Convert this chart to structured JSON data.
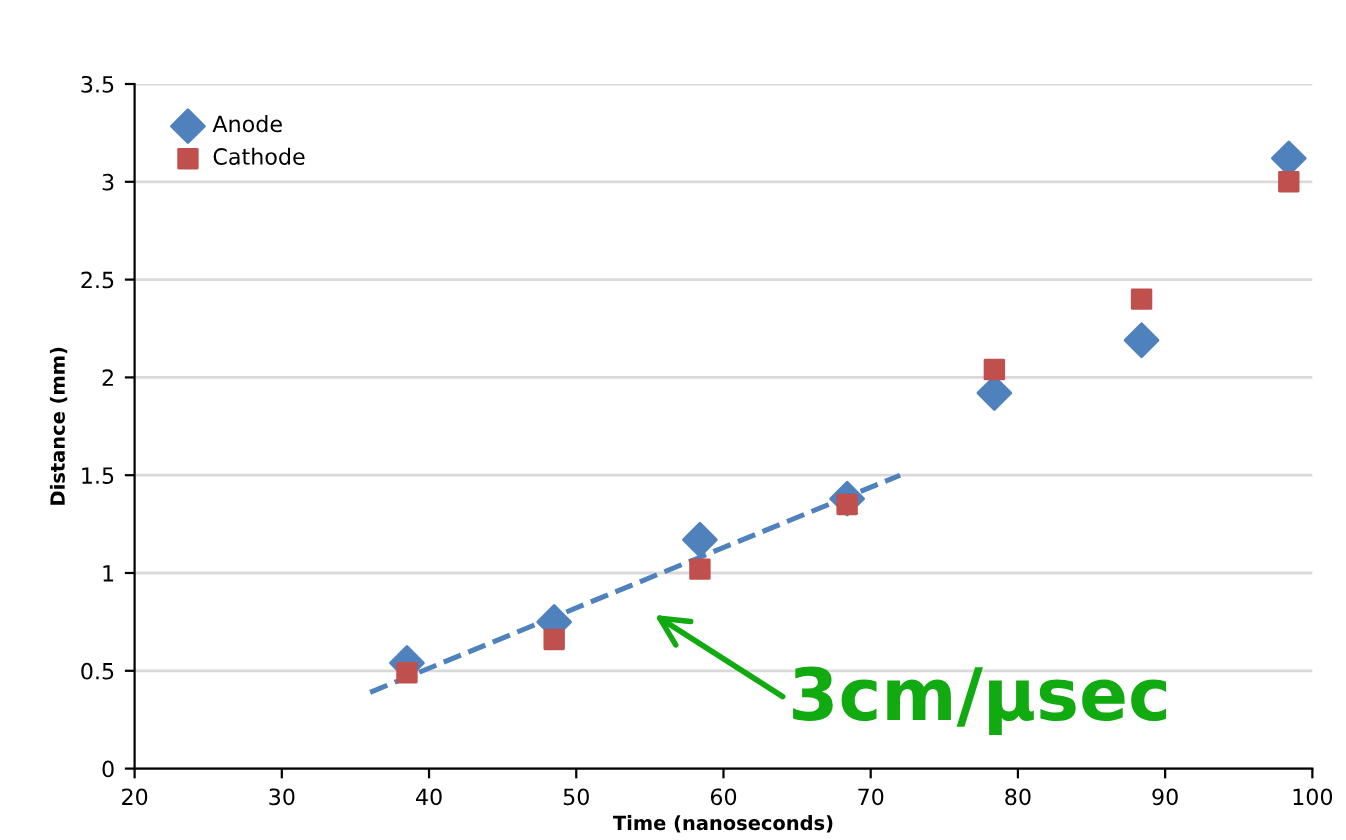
{
  "chart_data": {
    "type": "scatter",
    "xlabel": "Time (nanoseconds)",
    "ylabel": "Distance (mm)",
    "xlim": [
      20,
      100
    ],
    "xticks": [
      20,
      30,
      40,
      50,
      60,
      70,
      80,
      90,
      100
    ],
    "ylim": [
      0,
      3.5
    ],
    "yticks": [
      0,
      0.5,
      1,
      1.5,
      2,
      2.5,
      3,
      3.5
    ],
    "grid": "y",
    "legend": "top left",
    "series": [
      {
        "name": "Anode",
        "color": "#4f81bd",
        "marker": "diamond",
        "x": [
          38.5,
          48.5,
          58.4,
          68.4,
          78.4,
          88.4,
          98.4
        ],
        "values": [
          0.54,
          0.75,
          1.17,
          1.38,
          1.92,
          2.19,
          3.12
        ]
      },
      {
        "name": "Cathode",
        "color": "#c0504d",
        "marker": "square",
        "x": [
          38.5,
          48.5,
          58.4,
          68.4,
          78.4,
          88.4,
          98.4
        ],
        "values": [
          0.49,
          0.66,
          1.02,
          1.35,
          2.04,
          2.4,
          3.0
        ]
      },
      {
        "type": "line",
        "color": "#4f81bd",
        "line_style": "dashed",
        "marker": "none",
        "x": [
          36,
          72
        ],
        "values": [
          0.39,
          1.5
        ]
      }
    ],
    "annotations": [
      "3cm/μsec"
    ]
  }
}
